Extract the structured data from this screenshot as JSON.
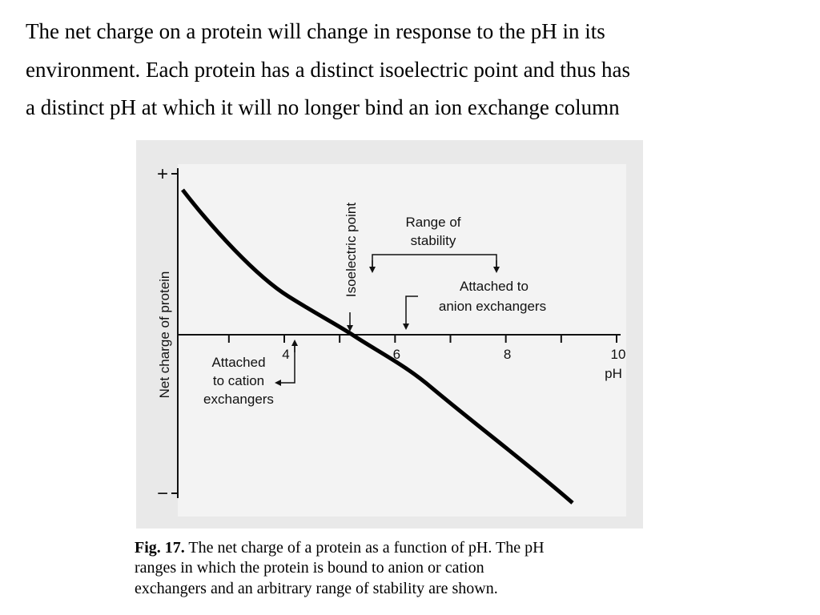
{
  "intro": {
    "lines": [
      "The net charge on a protein will change in response to the pH in its",
      "environment. Each protein has a distinct isoelectric point and thus has",
      "a distinct pH at which it will no longer bind an ion exchange column"
    ]
  },
  "figure": {
    "y_axis_label": "Net charge of protein",
    "y_plus": "+",
    "y_minus": "−",
    "x_ticks": [
      4,
      6,
      8,
      10
    ],
    "x_unit": "pH",
    "isoelectric_label": "Isoelectric point",
    "stability_label": [
      "Range of",
      "stability"
    ],
    "anion_label": [
      "Attached to",
      "anion exchangers"
    ],
    "cation_label": [
      "Attached",
      "to cation",
      "exchangers"
    ]
  },
  "caption": {
    "label": "Fig. 17.",
    "lines": [
      "The net charge of a protein as a function of pH. The pH",
      "ranges in which the protein is bound to anion or cation",
      "exchangers and an arbitrary range of stability are shown."
    ]
  }
}
